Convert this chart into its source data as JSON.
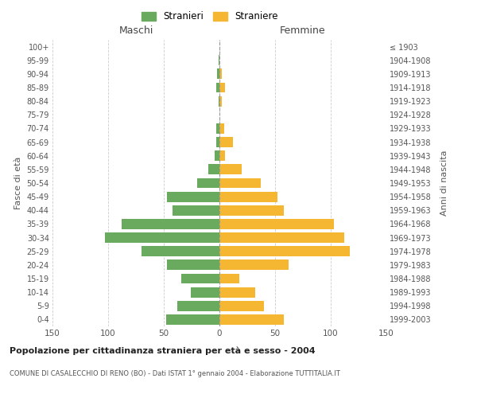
{
  "age_groups": [
    "0-4",
    "5-9",
    "10-14",
    "15-19",
    "20-24",
    "25-29",
    "30-34",
    "35-39",
    "40-44",
    "45-49",
    "50-54",
    "55-59",
    "60-64",
    "65-69",
    "70-74",
    "75-79",
    "80-84",
    "85-89",
    "90-94",
    "95-99",
    "100+"
  ],
  "birth_years": [
    "1999-2003",
    "1994-1998",
    "1989-1993",
    "1984-1988",
    "1979-1983",
    "1974-1978",
    "1969-1973",
    "1964-1968",
    "1959-1963",
    "1954-1958",
    "1949-1953",
    "1944-1948",
    "1939-1943",
    "1934-1938",
    "1929-1933",
    "1924-1928",
    "1919-1923",
    "1914-1918",
    "1909-1913",
    "1904-1908",
    "≤ 1903"
  ],
  "males": [
    48,
    38,
    26,
    34,
    47,
    70,
    103,
    88,
    42,
    47,
    20,
    10,
    4,
    3,
    3,
    0,
    1,
    3,
    2,
    1,
    0
  ],
  "females": [
    58,
    40,
    32,
    18,
    62,
    117,
    112,
    103,
    58,
    52,
    37,
    20,
    5,
    12,
    4,
    0,
    2,
    5,
    2,
    0,
    0
  ],
  "male_color": "#6aaa5e",
  "female_color": "#f5b731",
  "grid_color": "#cccccc",
  "title": "Popolazione per cittadinanza straniera per età e sesso - 2004",
  "subtitle": "COMUNE DI CASALECCHIO DI RENO (BO) - Dati ISTAT 1° gennaio 2004 - Elaborazione TUTTITALIA.IT",
  "xlabel_left": "Maschi",
  "xlabel_right": "Femmine",
  "ylabel_left": "Fasce di età",
  "ylabel_right": "Anni di nascita",
  "legend_stranieri": "Stranieri",
  "legend_straniere": "Straniere",
  "xlim": 150
}
